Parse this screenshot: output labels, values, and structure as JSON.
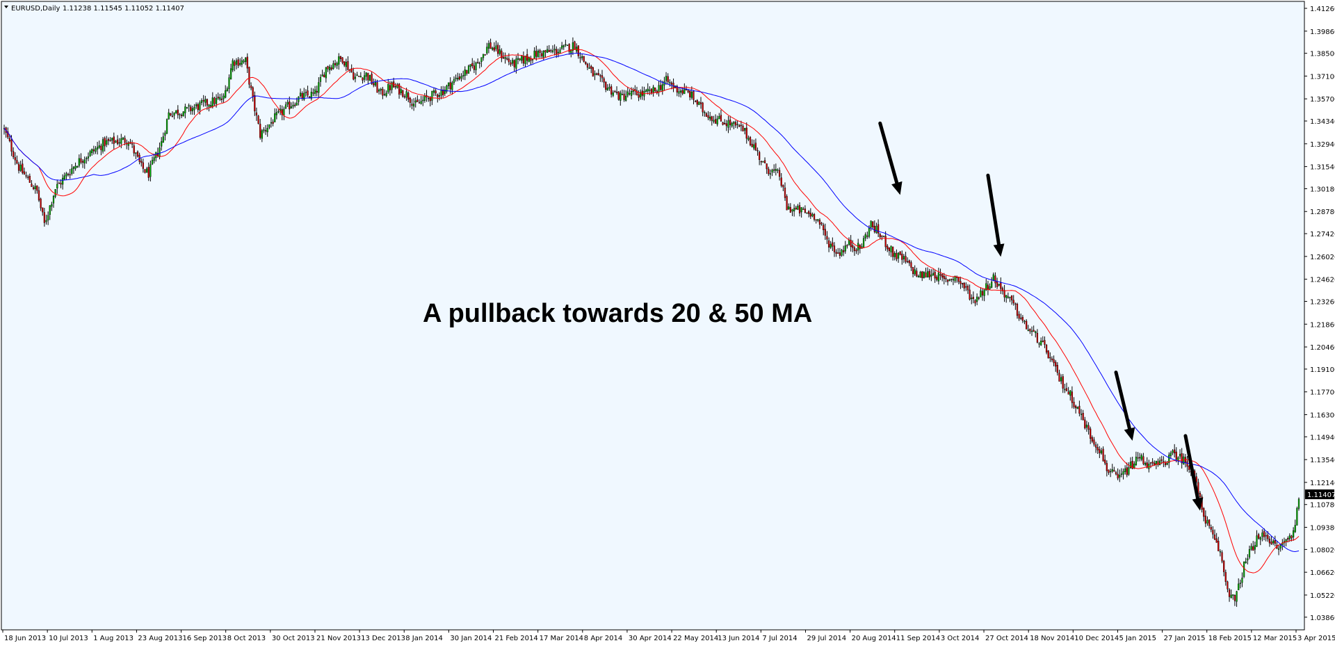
{
  "window": {
    "symbol_label": "EURUSD,Daily",
    "ohlc_label": "1.11238 1.11545 1.11052 1.11407"
  },
  "chart_data": {
    "type": "candlestick",
    "symbol": "EURUSD",
    "timeframe": "Daily",
    "annotation": "A pullback towards 20 & 50 MA",
    "last_price": "1.11407",
    "ylim": [
      1.0368,
      1.4126
    ],
    "y_ticks": [
      "1.41260",
      "1.39860",
      "1.38500",
      "1.37100",
      "1.35700",
      "1.34340",
      "1.32940",
      "1.31540",
      "1.30180",
      "1.28780",
      "1.27420",
      "1.26020",
      "1.24620",
      "1.23260",
      "1.21860",
      "1.20460",
      "1.19100",
      "1.17700",
      "1.16300",
      "1.14940",
      "1.13540",
      "1.12140",
      "1.10780",
      "1.09380",
      "1.08020",
      "1.06620",
      "1.05220",
      "1.03860"
    ],
    "x_ticks": [
      "18 Jun 2013",
      "10 Jul 2013",
      "1 Aug 2013",
      "23 Aug 2013",
      "16 Sep 2013",
      "8 Oct 2013",
      "30 Oct 2013",
      "21 Nov 2013",
      "13 Dec 2013",
      "8 Jan 2014",
      "30 Jan 2014",
      "21 Feb 2014",
      "17 Mar 2014",
      "8 Apr 2014",
      "30 Apr 2014",
      "22 May 2014",
      "13 Jun 2014",
      "7 Jul 2014",
      "29 Jul 2014",
      "20 Aug 2014",
      "11 Sep 2014",
      "3 Oct 2014",
      "27 Oct 2014",
      "18 Nov 2014",
      "10 Dec 2014",
      "5 Jan 2015",
      "27 Jan 2015",
      "18 Feb 2015",
      "12 Mar 2015",
      "3 Apr 2015"
    ],
    "close_path": [
      [
        0,
        1.338
      ],
      [
        8,
        1.315
      ],
      [
        18,
        1.3
      ],
      [
        22,
        1.28
      ],
      [
        28,
        1.302
      ],
      [
        40,
        1.318
      ],
      [
        55,
        1.33
      ],
      [
        68,
        1.332
      ],
      [
        75,
        1.315
      ],
      [
        79,
        1.311
      ],
      [
        86,
        1.33
      ],
      [
        90,
        1.348
      ],
      [
        100,
        1.35
      ],
      [
        110,
        1.354
      ],
      [
        116,
        1.356
      ],
      [
        120,
        1.357
      ],
      [
        125,
        1.38
      ],
      [
        132,
        1.38
      ],
      [
        136,
        1.356
      ],
      [
        140,
        1.335
      ],
      [
        148,
        1.345
      ],
      [
        155,
        1.352
      ],
      [
        162,
        1.358
      ],
      [
        170,
        1.36
      ],
      [
        176,
        1.376
      ],
      [
        185,
        1.382
      ],
      [
        192,
        1.37
      ],
      [
        198,
        1.372
      ],
      [
        206,
        1.36
      ],
      [
        212,
        1.365
      ],
      [
        220,
        1.36
      ],
      [
        225,
        1.353
      ],
      [
        232,
        1.358
      ],
      [
        240,
        1.362
      ],
      [
        248,
        1.37
      ],
      [
        258,
        1.378
      ],
      [
        265,
        1.39
      ],
      [
        270,
        1.386
      ],
      [
        278,
        1.378
      ],
      [
        286,
        1.382
      ],
      [
        292,
        1.385
      ],
      [
        300,
        1.386
      ],
      [
        307,
        1.388
      ],
      [
        312,
        1.39
      ],
      [
        316,
        1.382
      ],
      [
        322,
        1.372
      ],
      [
        330,
        1.364
      ],
      [
        337,
        1.358
      ],
      [
        342,
        1.36
      ],
      [
        350,
        1.36
      ],
      [
        356,
        1.362
      ],
      [
        362,
        1.368
      ],
      [
        368,
        1.363
      ],
      [
        375,
        1.36
      ],
      [
        382,
        1.35
      ],
      [
        388,
        1.345
      ],
      [
        396,
        1.342
      ],
      [
        404,
        1.338
      ],
      [
        410,
        1.328
      ],
      [
        416,
        1.315
      ],
      [
        424,
        1.31
      ],
      [
        428,
        1.29
      ],
      [
        436,
        1.288
      ],
      [
        444,
        1.285
      ],
      [
        450,
        1.27
      ],
      [
        456,
        1.262
      ],
      [
        462,
        1.268
      ],
      [
        468,
        1.265
      ],
      [
        474,
        1.28
      ],
      [
        480,
        1.272
      ],
      [
        486,
        1.262
      ],
      [
        492,
        1.258
      ],
      [
        500,
        1.248
      ],
      [
        508,
        1.25
      ],
      [
        514,
        1.245
      ],
      [
        520,
        1.248
      ],
      [
        526,
        1.24
      ],
      [
        530,
        1.233
      ],
      [
        536,
        1.24
      ],
      [
        541,
        1.247
      ],
      [
        546,
        1.239
      ],
      [
        552,
        1.23
      ],
      [
        558,
        1.218
      ],
      [
        565,
        1.21
      ],
      [
        571,
        1.2
      ],
      [
        577,
        1.185
      ],
      [
        583,
        1.175
      ],
      [
        589,
        1.162
      ],
      [
        594,
        1.15
      ],
      [
        599,
        1.142
      ],
      [
        603,
        1.13
      ],
      [
        609,
        1.123
      ],
      [
        615,
        1.13
      ],
      [
        621,
        1.137
      ],
      [
        627,
        1.131
      ],
      [
        633,
        1.133
      ],
      [
        640,
        1.139
      ],
      [
        645,
        1.135
      ],
      [
        650,
        1.129
      ],
      [
        655,
        1.105
      ],
      [
        660,
        1.09
      ],
      [
        665,
        1.078
      ],
      [
        669,
        1.056
      ],
      [
        673,
        1.048
      ],
      [
        678,
        1.07
      ],
      [
        684,
        1.085
      ],
      [
        690,
        1.09
      ],
      [
        696,
        1.08
      ],
      [
        702,
        1.087
      ],
      [
        705,
        1.09
      ],
      [
        708,
        1.1141
      ]
    ],
    "series": [
      {
        "name": "",
        "color": "#ff0000",
        "period": 20
      },
      {
        "name": "",
        "color": "#0000ff",
        "period": 50
      }
    ],
    "arrows": [
      {
        "from": [
          479,
          1.342
        ],
        "to": [
          490,
          1.298
        ]
      },
      {
        "from": [
          538,
          1.31
        ],
        "to": [
          545,
          1.26
        ]
      },
      {
        "from": [
          608,
          1.189
        ],
        "to": [
          617,
          1.147
        ]
      },
      {
        "from": [
          646,
          1.15
        ],
        "to": [
          654,
          1.104
        ]
      }
    ],
    "colors": {
      "background": "#f0f8ff",
      "bull": "#00aa00",
      "bear": "#cc0000",
      "outline": "#000000",
      "arrow": "#000000"
    }
  }
}
